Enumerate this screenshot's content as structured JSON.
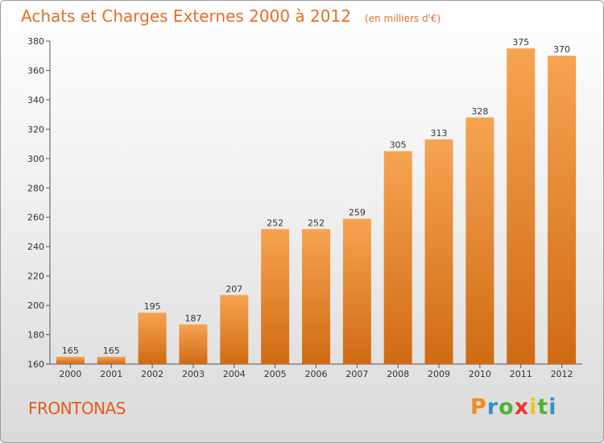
{
  "chart_data": {
    "type": "bar",
    "title": "Achats et Charges Externes 2000 à 2012",
    "subtitle": "(en milliers d'€)",
    "categories": [
      "2000",
      "2001",
      "2002",
      "2003",
      "2004",
      "2005",
      "2006",
      "2007",
      "2008",
      "2009",
      "2010",
      "2011",
      "2012"
    ],
    "values": [
      165,
      165,
      195,
      187,
      207,
      252,
      252,
      259,
      305,
      313,
      328,
      375,
      370
    ],
    "ylim": [
      160,
      380
    ],
    "yticks": [
      160,
      180,
      200,
      220,
      240,
      260,
      280,
      300,
      320,
      340,
      360,
      380
    ],
    "grid": false,
    "bar_color": "#f0882c"
  },
  "place_name": "FRONTONAS",
  "logo": {
    "letters": [
      "P",
      "r",
      "o",
      "x",
      "i",
      "t",
      "i"
    ],
    "colors": [
      "#f08c1e",
      "#2f8fd1",
      "#52b233",
      "#e8362b",
      "#f4c21b",
      "#52b233",
      "#2f8fd1"
    ]
  }
}
